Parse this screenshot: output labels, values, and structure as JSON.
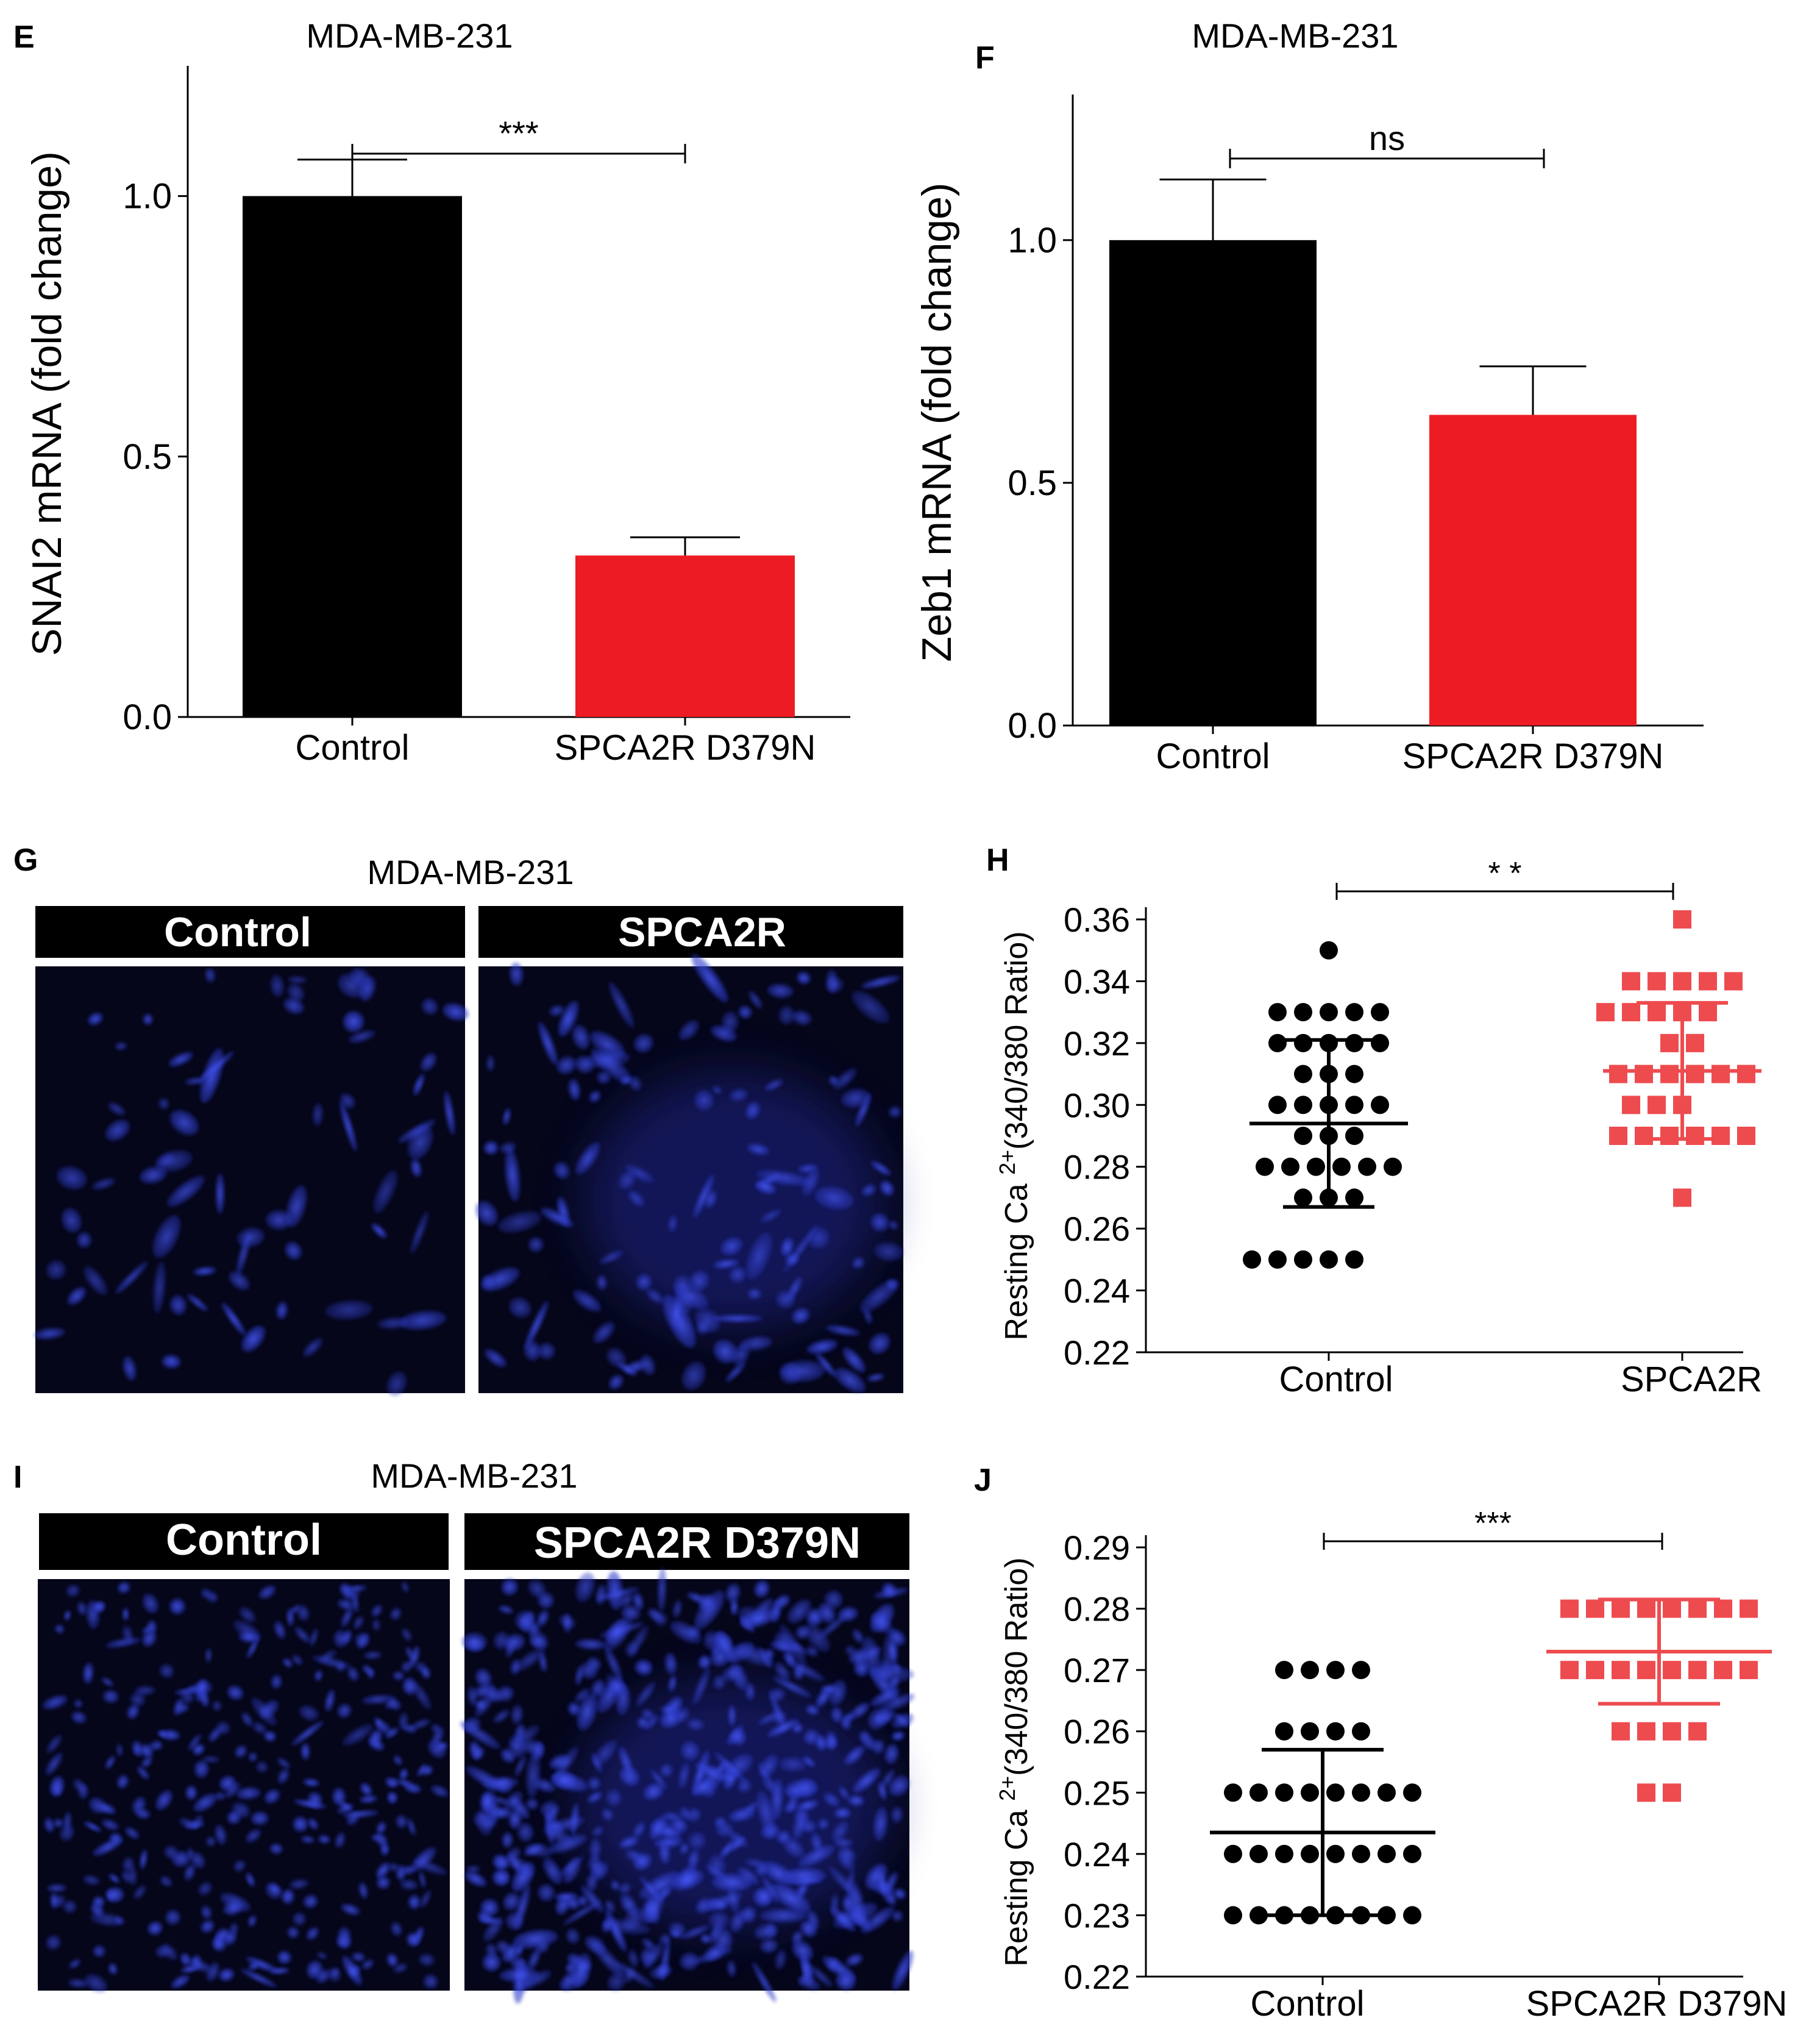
{
  "colors": {
    "control": "#000000",
    "treated": "#ed1c24",
    "treated_dots": "#ee4b4f",
    "micro_bg": "#05061a",
    "micro_cell": "#2b3bd6"
  },
  "panels": {
    "E": {
      "letter": "E",
      "title": "MDA-MB-231",
      "chart_data": {
        "type": "bar",
        "categories": [
          "Control",
          "SPCA2R D379N"
        ],
        "values": [
          1.0,
          0.31
        ],
        "errors": [
          0.07,
          0.035
        ],
        "ylabel": "SNAI2 mRNA (fold change)",
        "ylim": [
          0,
          1.25
        ],
        "yticks": [
          "0.0",
          "0.5",
          "1.0"
        ],
        "significance": "***"
      }
    },
    "F": {
      "letter": "F",
      "title": "MDA-MB-231",
      "chart_data": {
        "type": "bar",
        "categories": [
          "Control",
          "SPCA2R D379N"
        ],
        "values": [
          1.0,
          0.64
        ],
        "errors": [
          0.125,
          0.1
        ],
        "ylabel": "Zeb1 mRNA (fold change)",
        "ylim": [
          0,
          1.3
        ],
        "yticks": [
          "0.0",
          "0.5",
          "1.0"
        ],
        "significance": "ns"
      }
    },
    "G": {
      "letter": "G",
      "title": "MDA-MB-231",
      "labels": [
        "Control",
        "SPCA2R"
      ]
    },
    "H": {
      "letter": "H",
      "chart_data": {
        "type": "scatter",
        "categories": [
          "Control",
          "SPCA2R"
        ],
        "ylabel_prefix": "Resting Ca",
        "ylabel_sup": "2+",
        "ylabel_suffix": "(340/380 Ratio)",
        "ylim": [
          0.22,
          0.36
        ],
        "yticks": [
          "0.22",
          "0.24",
          "0.26",
          "0.28",
          "0.30",
          "0.32",
          "0.34",
          "0.36"
        ],
        "significance": "* *",
        "series": [
          {
            "mean": 0.294,
            "sd_low": 0.267,
            "sd_high": 0.321,
            "points": [
              [
                0.35,
                [
                  0
                ]
              ],
              [
                0.33,
                [
                  -2,
                  -1,
                  0,
                  1,
                  2
                ]
              ],
              [
                0.32,
                [
                  -2,
                  -1,
                  0,
                  1,
                  2
                ]
              ],
              [
                0.31,
                [
                  -1,
                  0,
                  1
                ]
              ],
              [
                0.3,
                [
                  -2,
                  -1,
                  0,
                  1,
                  2
                ]
              ],
              [
                0.29,
                [
                  -1,
                  0,
                  1
                ]
              ],
              [
                0.28,
                [
                  -3,
                  -2,
                  -1,
                  0,
                  1,
                  2
                ]
              ],
              [
                0.27,
                [
                  -1,
                  0,
                  1
                ]
              ],
              [
                0.25,
                [
                  -3,
                  -2,
                  -1,
                  0,
                  1
                ]
              ]
            ]
          },
          {
            "mean": 0.311,
            "sd_low": 0.289,
            "sd_high": 0.333,
            "points": [
              [
                0.36,
                [
                  0
                ]
              ],
              [
                0.34,
                [
                  -2,
                  -1,
                  0,
                  1,
                  2
                ]
              ],
              [
                0.33,
                [
                  -3,
                  -2,
                  -1,
                  0,
                  1
                ]
              ],
              [
                0.32,
                [
                  -1,
                  0
                ]
              ],
              [
                0.31,
                [
                  -3,
                  -2,
                  -1,
                  0,
                  1,
                  2
                ]
              ],
              [
                0.3,
                [
                  -2,
                  -1,
                  0
                ]
              ],
              [
                0.29,
                [
                  -3,
                  -2,
                  -1,
                  0,
                  1,
                  2
                ]
              ],
              [
                0.27,
                [
                  0
                ]
              ]
            ]
          }
        ]
      }
    },
    "I": {
      "letter": "I",
      "title": "MDA-MB-231",
      "labels": [
        "Control",
        "SPCA2R D379N"
      ]
    },
    "J": {
      "letter": "J",
      "chart_data": {
        "type": "scatter",
        "categories": [
          "Control",
          "SPCA2R D379N"
        ],
        "ylabel_prefix": "Resting Ca",
        "ylabel_sup": "2+",
        "ylabel_suffix": "(340/380 Ratio)",
        "ylim": [
          0.22,
          0.29
        ],
        "yticks": [
          "0.22",
          "0.23",
          "0.24",
          "0.25",
          "0.26",
          "0.27",
          "0.28",
          "0.29"
        ],
        "significance": "***",
        "series": [
          {
            "mean": 0.2435,
            "sd_low": 0.23,
            "sd_high": 0.257,
            "points": [
              [
                0.27,
                [
                  -2,
                  -1,
                  0,
                  1
                ]
              ],
              [
                0.26,
                [
                  -2,
                  -1,
                  0,
                  1
                ]
              ],
              [
                0.25,
                [
                  -4,
                  -3,
                  -2,
                  -1,
                  0,
                  1,
                  2,
                  3
                ]
              ],
              [
                0.24,
                [
                  -4,
                  -3,
                  -2,
                  -1,
                  0,
                  1,
                  2,
                  3
                ]
              ],
              [
                0.23,
                [
                  -4,
                  -3,
                  -2,
                  -1,
                  0,
                  1,
                  2,
                  3
                ]
              ]
            ]
          },
          {
            "mean": 0.273,
            "sd_low": 0.2645,
            "sd_high": 0.2815,
            "points": [
              [
                0.28,
                [
                  -4,
                  -3,
                  -2,
                  -1,
                  0,
                  1,
                  2,
                  3
                ]
              ],
              [
                0.27,
                [
                  -4,
                  -3,
                  -2,
                  -1,
                  0,
                  1,
                  2,
                  3
                ]
              ],
              [
                0.26,
                [
                  -2,
                  -1,
                  0,
                  1
                ]
              ],
              [
                0.25,
                [
                  -1,
                  0
                ]
              ]
            ]
          }
        ]
      }
    }
  }
}
